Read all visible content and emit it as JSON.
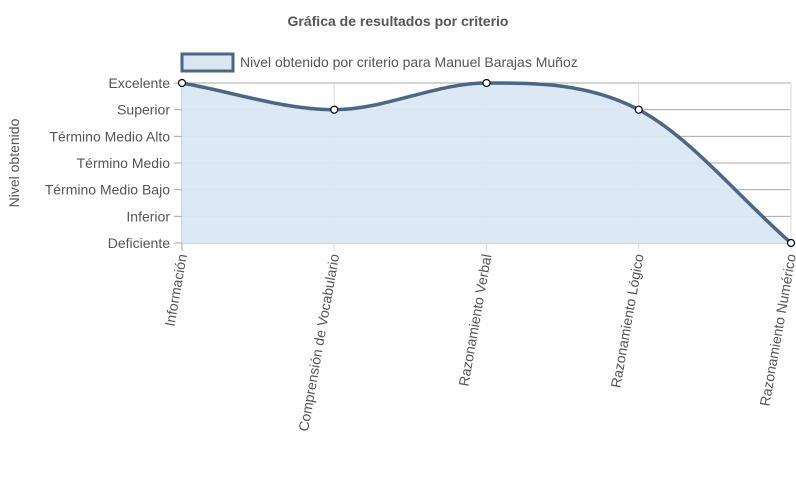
{
  "chart_data": {
    "type": "line",
    "title": "Gráfica de resultados por criterio",
    "ylabel": "Nivel obtenido",
    "xlabel": "",
    "categories": [
      "Información",
      "Comprensión de Vocabulario",
      "Razonamiento Verbal",
      "Razonamiento Lógico",
      "Razonamiento Numérico"
    ],
    "y_levels": [
      "Deficiente",
      "Inferior",
      "Término Medio Bajo",
      "Término Medio",
      "Término Medio Alto",
      "Superior",
      "Excelente"
    ],
    "ylim": [
      0,
      6
    ],
    "series": [
      {
        "name": "Nivel obtenido por criterio para Manuel Barajas Muñoz",
        "values": [
          6,
          5,
          6,
          5,
          0
        ],
        "value_labels": [
          "Excelente",
          "Superior",
          "Excelente",
          "Superior",
          "Deficiente"
        ]
      }
    ],
    "fill": true,
    "smoothed": true,
    "grid": true,
    "legend_position": "top",
    "colors": {
      "line": "#4a6785",
      "fill": "#dae7f3",
      "grid": "#aaaaaa",
      "point_fill": "#ffffff",
      "point_stroke": "#000000",
      "text": "#555555"
    }
  }
}
